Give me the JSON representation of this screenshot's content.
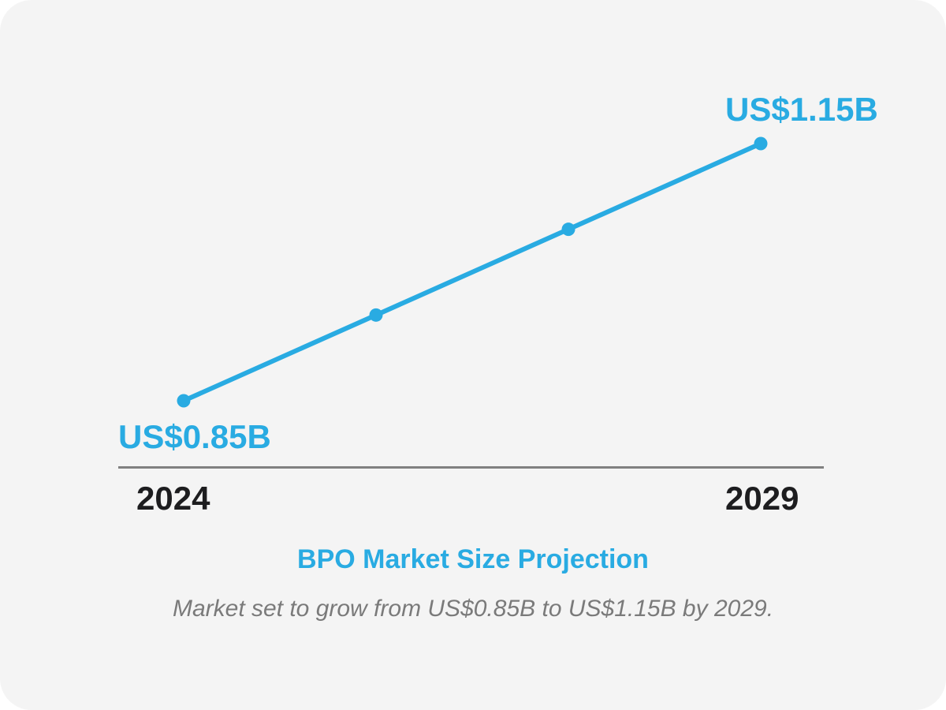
{
  "colors": {
    "accent": "#29abe2",
    "axis_line": "#808080",
    "year_text": "#1d1d1f",
    "subtitle_text": "#7a7a7a",
    "card_background": "#f4f4f4",
    "page_background": "#ffffff"
  },
  "chart_data": {
    "type": "line",
    "title": "BPO Market Size Projection",
    "subtitle": "Market set to grow from US$0.85B to US$1.15B by 2029.",
    "unit": "US$ billions",
    "grid": false,
    "legend": null,
    "x_axis": {
      "tick_labels": [
        "2024",
        "2029"
      ]
    },
    "y_range_shown": [
      0.85,
      1.15
    ],
    "series": [
      {
        "name": "BPO market size",
        "points": [
          {
            "x_frac": 0,
            "value": 0.85,
            "data_label": "US$0.85B"
          },
          {
            "x_frac": 0.3333,
            "value": 0.95,
            "data_label": ""
          },
          {
            "x_frac": 0.6667,
            "value": 1.05,
            "data_label": ""
          },
          {
            "x_frac": 1,
            "value": 1.15,
            "data_label": "US$1.15B"
          }
        ]
      }
    ]
  }
}
